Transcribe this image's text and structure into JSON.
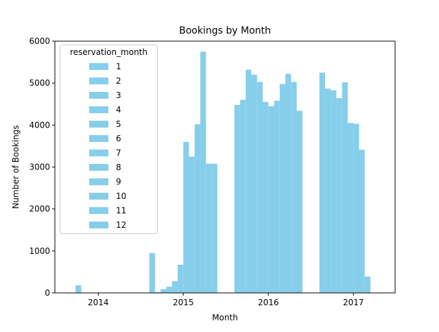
{
  "chart_data": {
    "type": "bar",
    "title": "Bookings by Month",
    "xlabel": "Month",
    "ylabel": "Number of Bookings",
    "ylim": [
      0,
      6000
    ],
    "xlim": [
      2013.49,
      2017.49
    ],
    "x_ticks": [
      {
        "value": 2014,
        "label": "2014"
      },
      {
        "value": 2015,
        "label": "2015"
      },
      {
        "value": 2016,
        "label": "2016"
      },
      {
        "value": 2017,
        "label": "2017"
      }
    ],
    "y_ticks": [
      {
        "value": 0,
        "label": "0"
      },
      {
        "value": 1000,
        "label": "1000"
      },
      {
        "value": 2000,
        "label": "2000"
      },
      {
        "value": 3000,
        "label": "3000"
      },
      {
        "value": 4000,
        "label": "4000"
      },
      {
        "value": 5000,
        "label": "5000"
      },
      {
        "value": 6000,
        "label": "6000"
      }
    ],
    "grid": false,
    "bar_color": "#87ceeb",
    "legend": {
      "title": "reservation_month",
      "placement": "upper-left",
      "entries": [
        "1",
        "2",
        "3",
        "4",
        "5",
        "6",
        "7",
        "8",
        "9",
        "10",
        "11",
        "12"
      ]
    },
    "series": [
      {
        "year": 2014,
        "bars": [
          {
            "month": 3,
            "value": 180
          }
        ]
      },
      {
        "year": 2015,
        "bars": [
          {
            "month": 1,
            "value": 950
          },
          {
            "month": 2,
            "value": 20
          },
          {
            "month": 3,
            "value": 90
          },
          {
            "month": 4,
            "value": 150
          },
          {
            "month": 5,
            "value": 280
          },
          {
            "month": 6,
            "value": 670
          },
          {
            "month": 7,
            "value": 3600
          },
          {
            "month": 8,
            "value": 3250
          },
          {
            "month": 9,
            "value": 4020
          },
          {
            "month": 10,
            "value": 5750
          },
          {
            "month": 11,
            "value": 3080
          },
          {
            "month": 12,
            "value": 3080
          }
        ]
      },
      {
        "year": 2016,
        "bars": [
          {
            "month": 1,
            "value": 4480
          },
          {
            "month": 2,
            "value": 4600
          },
          {
            "month": 3,
            "value": 5320
          },
          {
            "month": 4,
            "value": 5200
          },
          {
            "month": 5,
            "value": 5030
          },
          {
            "month": 6,
            "value": 4550
          },
          {
            "month": 7,
            "value": 4450
          },
          {
            "month": 8,
            "value": 4580
          },
          {
            "month": 9,
            "value": 4980
          },
          {
            "month": 10,
            "value": 5220
          },
          {
            "month": 11,
            "value": 5030
          },
          {
            "month": 12,
            "value": 4340
          }
        ]
      },
      {
        "year": 2017,
        "bars": [
          {
            "month": 1,
            "value": 5250
          },
          {
            "month": 2,
            "value": 4870
          },
          {
            "month": 3,
            "value": 4830
          },
          {
            "month": 4,
            "value": 4640
          },
          {
            "month": 5,
            "value": 5020
          },
          {
            "month": 6,
            "value": 4050
          },
          {
            "month": 7,
            "value": 4030
          },
          {
            "month": 8,
            "value": 3410
          },
          {
            "month": 9,
            "value": 390
          }
        ]
      }
    ]
  }
}
